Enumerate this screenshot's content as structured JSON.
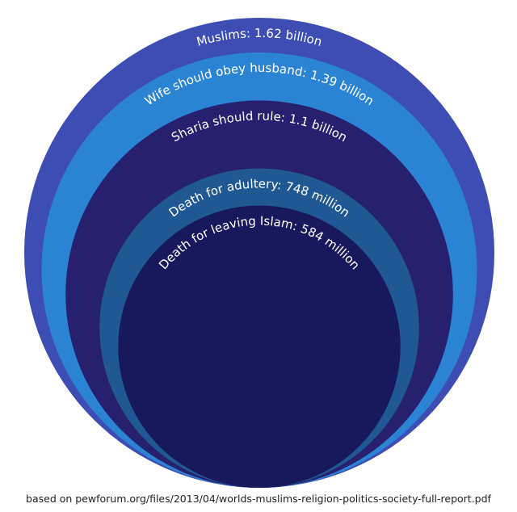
{
  "chart_data": {
    "type": "nested-circles",
    "value_labels": [
      "Muslims: 1.62 billion",
      "Wife should obey husband: 1.39 billion",
      "Sharia should rule: 1.1 billion",
      "Death for adultery: 748 million",
      "Death for leaving Islam: 584 million"
    ],
    "values": [
      1620,
      1390,
      1100,
      748,
      584
    ],
    "colors": [
      "#3e4db3",
      "#2b84d3",
      "#27206f",
      "#1f5893",
      "#17195c"
    ],
    "source": "based on pewforum.org/files/2013/04/worlds-muslims-religion-politics-society-full-report.pdf"
  }
}
